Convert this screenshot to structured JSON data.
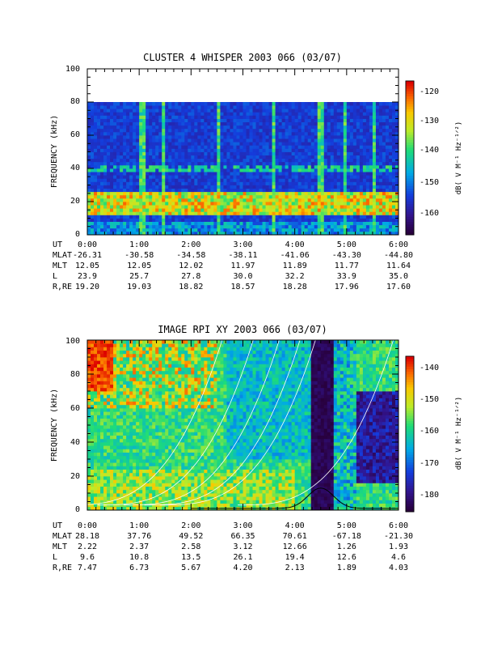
{
  "panels": [
    {
      "title": "CLUSTER 4 WHISPER 2003 066 (03/07)",
      "ylabel": "FREQUENCY (kHz)",
      "y_ticks": [
        "0",
        "20",
        "40",
        "60",
        "80",
        "100"
      ],
      "x_ticks": [
        "0:00",
        "1:00",
        "2:00",
        "3:00",
        "4:00",
        "5:00",
        "6:00"
      ],
      "colorbar_label": "dB( V M⁻¹ Hz⁻¹ᐟ²)",
      "colorbar_ticks": [
        "-120",
        "-130",
        "-140",
        "-150",
        "-160"
      ],
      "ephemeris": [
        {
          "label": "UT",
          "values": [
            "0:00",
            "1:00",
            "2:00",
            "3:00",
            "4:00",
            "5:00",
            "6:00"
          ]
        },
        {
          "label": "MLAT",
          "values": [
            "-26.31",
            "-30.58",
            "-34.58",
            "-38.11",
            "-41.06",
            "-43.30",
            "-44.80"
          ]
        },
        {
          "label": "MLT",
          "values": [
            "12.05",
            "12.05",
            "12.02",
            "11.97",
            "11.89",
            "11.77",
            "11.64"
          ]
        },
        {
          "label": "L",
          "values": [
            "23.9",
            "25.7",
            "27.8",
            "30.0",
            "32.2",
            "33.9",
            "35.0"
          ]
        },
        {
          "label": "R,RE",
          "values": [
            "19.20",
            "19.03",
            "18.82",
            "18.57",
            "18.28",
            "17.96",
            "17.60"
          ]
        }
      ]
    },
    {
      "title": "IMAGE RPI XY 2003 066 (03/07)",
      "ylabel": "FREQUENCY (kHz)",
      "y_ticks": [
        "0",
        "20",
        "40",
        "60",
        "80",
        "100"
      ],
      "x_ticks": [
        "0:00",
        "1:00",
        "2:00",
        "3:00",
        "4:00",
        "5:00",
        "6:00"
      ],
      "colorbar_label": "dB( V M⁻¹ Hz⁻¹ᐟ²)",
      "colorbar_ticks": [
        "-140",
        "-150",
        "-160",
        "-170",
        "-180"
      ],
      "ephemeris": [
        {
          "label": "UT",
          "values": [
            "0:00",
            "1:00",
            "2:00",
            "3:00",
            "4:00",
            "5:00",
            "6:00"
          ]
        },
        {
          "label": "MLAT",
          "values": [
            "28.18",
            "37.76",
            "49.52",
            "66.35",
            "70.61",
            "-67.18",
            "-21.30"
          ]
        },
        {
          "label": "MLT",
          "values": [
            "2.22",
            "2.37",
            "2.58",
            "3.12",
            "12.66",
            "1.26",
            "1.93"
          ]
        },
        {
          "label": "L",
          "values": [
            "9.6",
            "10.8",
            "13.5",
            "26.1",
            "19.4",
            "12.6",
            "4.6"
          ]
        },
        {
          "label": "R,RE",
          "values": [
            "7.47",
            "6.73",
            "5.67",
            "4.20",
            "2.13",
            "1.89",
            "4.03"
          ]
        }
      ]
    }
  ],
  "chart_data": [
    {
      "type": "heatmap",
      "title": "CLUSTER 4 WHISPER 2003 066 (03/07)",
      "xlabel": "UT",
      "ylabel": "FREQUENCY (kHz)",
      "xlim": [
        0,
        6
      ],
      "ylim": [
        0,
        100
      ],
      "x_unit": "hours UT",
      "data_extent_khz": [
        0,
        80
      ],
      "colorscale": "rainbow",
      "color_range_db": [
        -165,
        -118
      ],
      "features": [
        {
          "kind": "emission band",
          "freq_khz": [
            12,
            26
          ],
          "level_db": -135
        },
        {
          "kind": "narrowband line",
          "freq_khz": 40,
          "level_db": -145
        },
        {
          "kind": "vertical broadband spikes",
          "times_ut": [
            1.05,
            1.12,
            1.45,
            2.55,
            3.6,
            4.5,
            4.95,
            5.55
          ]
        },
        {
          "kind": "background",
          "level_db": -158
        }
      ]
    },
    {
      "type": "heatmap",
      "title": "IMAGE RPI XY 2003 066 (03/07)",
      "xlabel": "UT",
      "ylabel": "FREQUENCY (kHz)",
      "xlim": [
        0,
        6
      ],
      "ylim": [
        0,
        100
      ],
      "x_unit": "hours UT",
      "colorscale": "rainbow",
      "color_range_db": [
        -185,
        -135
      ],
      "features": [
        {
          "kind": "strong emission",
          "times_ut": [
            0.0,
            0.5
          ],
          "freq_khz": [
            70,
            100
          ],
          "level_db": -138
        },
        {
          "kind": "dark data gap",
          "times_ut": [
            4.3,
            4.75
          ],
          "level_db": -185
        },
        {
          "kind": "white overlay curves",
          "count": 6
        },
        {
          "kind": "black overlay curve",
          "times_ut": [
            2.0,
            6.0
          ]
        }
      ]
    }
  ]
}
